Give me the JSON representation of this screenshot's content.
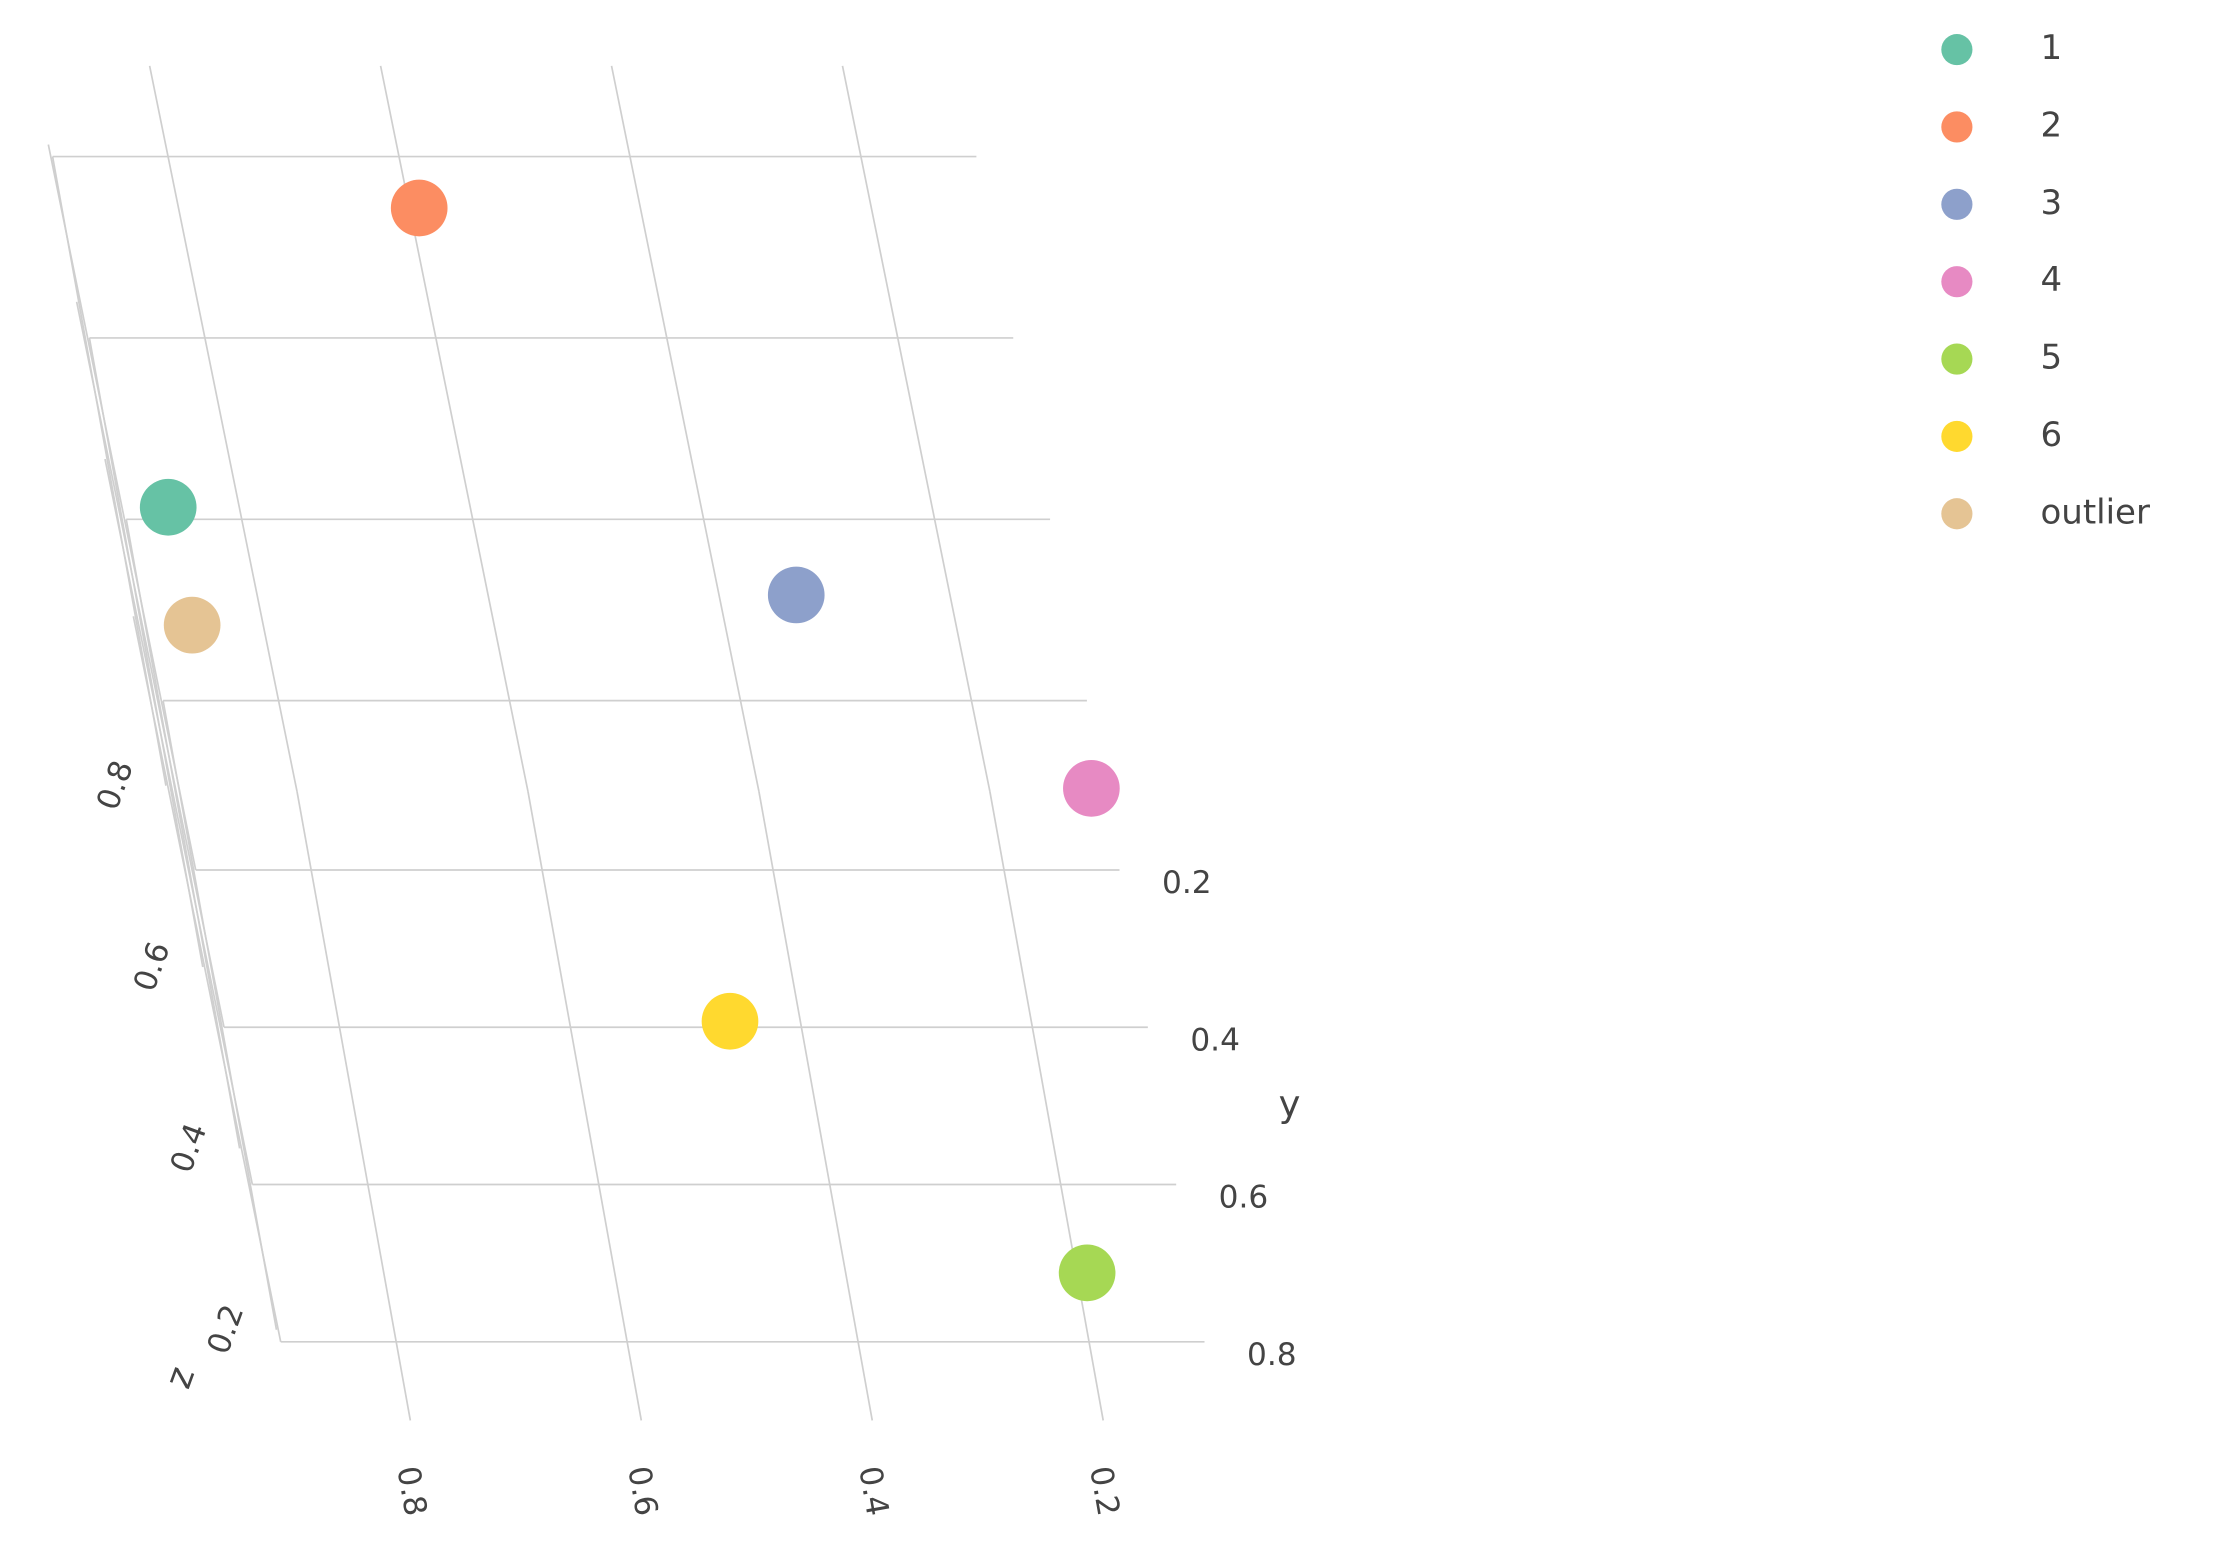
{
  "chart_data": {
    "type": "scatter3d",
    "yaxis_title": "y",
    "zaxis_title": "z",
    "xlim": [
      0.1,
      0.9
    ],
    "xticks": [
      0.2,
      0.4,
      0.6,
      0.8
    ],
    "ylim": [
      0.1,
      0.9
    ],
    "yticks": [
      0.2,
      0.4,
      0.6,
      0.8
    ],
    "zlim": [
      0.1,
      0.9
    ],
    "zticks": [
      0.2,
      0.4,
      0.6,
      0.8
    ],
    "grid": true,
    "legend": "top-right",
    "series": [
      {
        "name": "1",
        "color": "#66c2a5",
        "x": [
          0.86
        ],
        "y": [
          0.2
        ],
        "z": [
          0.5
        ]
      },
      {
        "name": "2",
        "color": "#fc8d62",
        "x": [
          0.59
        ],
        "y": [
          0.2
        ],
        "z": [
          0.83
        ]
      },
      {
        "name": "3",
        "color": "#8da0cb",
        "x": [
          0.33
        ],
        "y": [
          0.3
        ],
        "z": [
          0.49
        ]
      },
      {
        "name": "4",
        "color": "#e78ac3",
        "x": [
          0.11
        ],
        "y": [
          0.2
        ],
        "z": [
          0.19
        ]
      },
      {
        "name": "5",
        "color": "#a6d854",
        "x": [
          0.19
        ],
        "y": [
          0.77
        ],
        "z": [
          0.15
        ]
      },
      {
        "name": "6",
        "color": "#ffd92f",
        "x": [
          0.46
        ],
        "y": [
          0.45
        ],
        "z": [
          0.15
        ]
      },
      {
        "name": "outlier",
        "color": "#e5c494",
        "x": [
          0.86
        ],
        "y": [
          0.2
        ],
        "z": [
          0.37
        ]
      }
    ]
  }
}
